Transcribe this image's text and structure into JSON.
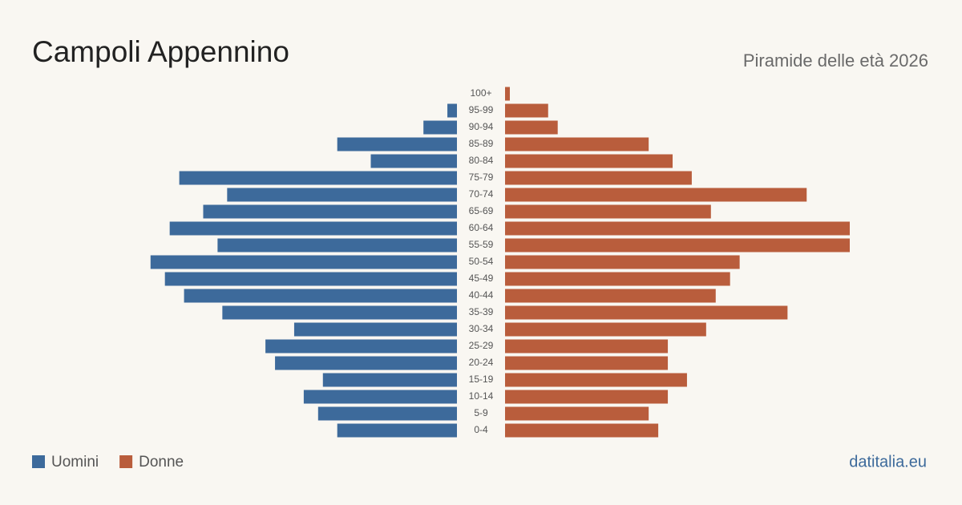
{
  "chart_data": {
    "type": "pyramid",
    "title": "Campoli Appennino",
    "subtitle": "Piramide delle età 2026",
    "source": "datitalia.eu",
    "categories": [
      "100+",
      "95-99",
      "90-94",
      "85-89",
      "80-84",
      "75-79",
      "70-74",
      "65-69",
      "60-64",
      "55-59",
      "50-54",
      "45-49",
      "40-44",
      "35-39",
      "30-34",
      "25-29",
      "20-24",
      "15-19",
      "10-14",
      "5-9",
      "0-4"
    ],
    "series": [
      {
        "name": "Uomini",
        "color": "#3d6a9b",
        "values": [
          0,
          2,
          7,
          25,
          18,
          58,
          48,
          53,
          60,
          50,
          64,
          61,
          57,
          49,
          34,
          40,
          38,
          28,
          32,
          29,
          25
        ]
      },
      {
        "name": "Donne",
        "color": "#b95d3c",
        "values": [
          1,
          9,
          11,
          30,
          35,
          39,
          63,
          43,
          72,
          72,
          49,
          47,
          44,
          59,
          42,
          34,
          34,
          38,
          34,
          30,
          32
        ]
      }
    ]
  }
}
